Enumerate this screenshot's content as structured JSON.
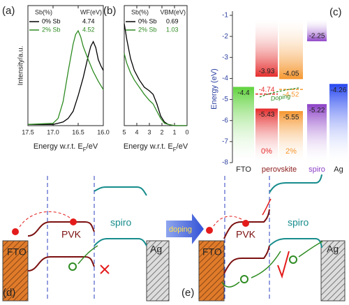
{
  "chart_data": [
    {
      "type": "line",
      "panel": "(a)",
      "x_label": "Energy w.r.t. E",
      "x_label_sub": "F",
      "x_label_unit": "/eV",
      "y_label": "Intensity/a.u.",
      "xlim": [
        17.5,
        16.0
      ],
      "xticks": [
        17.5,
        {
          "value": 17.0,
          "label": "17.0"
        },
        16.5,
        {
          "value": 16.0,
          "label": "16.0"
        }
      ],
      "ylim": [
        0,
        1
      ],
      "legend_headers": [
        "Sb(%)",
        "WF(eV)"
      ],
      "series": [
        {
          "name": "0% Sb",
          "color": "#000000",
          "metric": 4.74,
          "x": [
            17.5,
            17.0,
            16.9,
            16.8,
            16.7,
            16.6,
            16.5,
            16.4,
            16.3,
            16.25,
            16.2,
            16.15,
            16.1,
            16.05,
            16.0
          ],
          "values": [
            0.01,
            0.01,
            0.02,
            0.03,
            0.06,
            0.12,
            0.25,
            0.4,
            0.58,
            0.66,
            0.7,
            0.65,
            0.55,
            0.5,
            0.46
          ]
        },
        {
          "name": "2% Sb",
          "color": "#2e8b22",
          "metric": 4.52,
          "x": [
            17.5,
            17.0,
            16.9,
            16.8,
            16.7,
            16.6,
            16.55,
            16.5,
            16.45,
            16.4,
            16.3,
            16.2,
            16.1,
            16.0
          ],
          "values": [
            0.01,
            0.02,
            0.06,
            0.2,
            0.45,
            0.68,
            0.76,
            0.79,
            0.74,
            0.66,
            0.55,
            0.45,
            0.37,
            0.3
          ]
        }
      ]
    },
    {
      "type": "line",
      "panel": "(b)",
      "x_label": "Energy w.r.t. E",
      "x_label_sub": "F",
      "x_label_unit": "/eV",
      "xlim": [
        5,
        0
      ],
      "xticks": [
        5,
        4,
        3,
        2,
        1,
        0
      ],
      "ylim": [
        0,
        1
      ],
      "legend_headers": [
        "Sb(%)",
        "VBM(eV)"
      ],
      "series": [
        {
          "name": "0% Sb",
          "color": "#000000",
          "metric": 0.69,
          "x": [
            5,
            4.8,
            4.5,
            4.2,
            3.8,
            3.4,
            3.0,
            2.7,
            2.4,
            2.1,
            1.8,
            1.5,
            1.0,
            0.5,
            0
          ],
          "values": [
            0.85,
            0.72,
            0.56,
            0.46,
            0.38,
            0.32,
            0.29,
            0.26,
            0.18,
            0.08,
            0.03,
            0.01,
            0.0,
            0.0,
            0.0
          ]
        },
        {
          "name": "2% Sb",
          "color": "#2e8b22",
          "metric": 1.03,
          "x": [
            5,
            4.8,
            4.5,
            4.2,
            3.8,
            3.4,
            3.0,
            2.7,
            2.4,
            2.1,
            1.8,
            1.5,
            1.0,
            0.5,
            0
          ],
          "values": [
            0.6,
            0.52,
            0.44,
            0.38,
            0.32,
            0.26,
            0.21,
            0.18,
            0.12,
            0.06,
            0.02,
            0.01,
            0.0,
            0.0,
            0.0
          ]
        }
      ]
    },
    {
      "type": "energy_levels",
      "panel": "(c)",
      "y_label": "Energy (eV)",
      "ylim": [
        -1,
        -8
      ],
      "yticks": [
        -1,
        -2,
        -3,
        -4,
        -5,
        -6,
        -7,
        -8
      ],
      "group_label": "perovskite",
      "annotation": "Doping",
      "columns": [
        {
          "label": "FTO",
          "color": "#5fd33c",
          "wf": -4.4
        },
        {
          "label": "0%",
          "color": "#e52a2a",
          "cb": -3.93,
          "ef": -4.74,
          "vb": -5.43
        },
        {
          "label": "2%",
          "color": "#f5962e",
          "cb": -4.05,
          "ef": -4.52,
          "vb": -5.55
        },
        {
          "label": "spiro",
          "color": "#8b3fc6",
          "lumo": -2.25,
          "homo": -5.22
        },
        {
          "label": "Ag",
          "color": "#2646f0",
          "wf": -4.26
        }
      ]
    }
  ],
  "diagrams": [
    {
      "label": "(d)",
      "left": "FTO",
      "absorber": "PVK",
      "htl": "spiro",
      "right": "Ag"
    },
    {
      "label": "(e)",
      "arrow_text": "doping",
      "left": "FTO",
      "absorber": "PVK",
      "htl": "spiro",
      "right": "Ag"
    }
  ]
}
